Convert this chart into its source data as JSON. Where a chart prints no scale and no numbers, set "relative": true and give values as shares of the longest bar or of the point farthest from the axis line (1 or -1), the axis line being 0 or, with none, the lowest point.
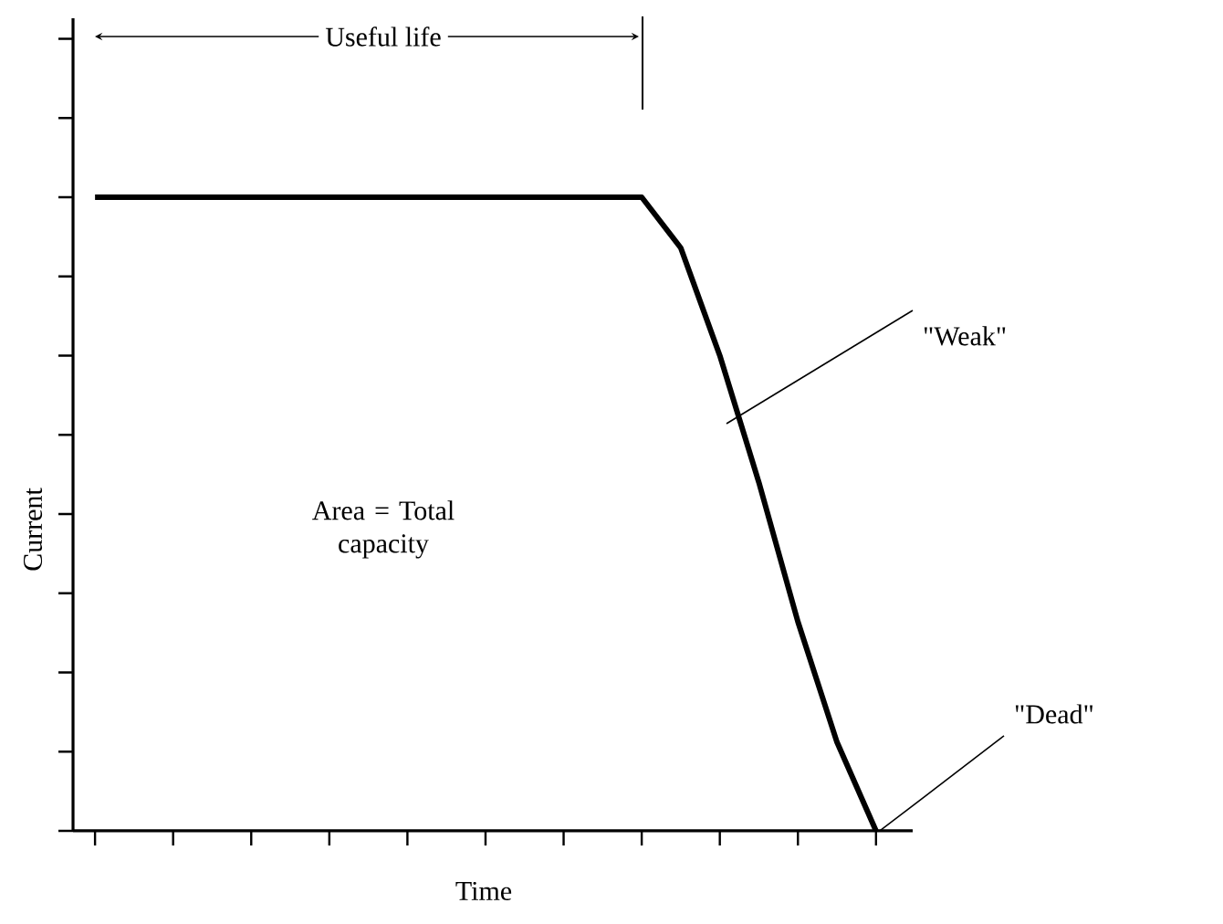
{
  "chart_data": {
    "type": "line",
    "relative": true,
    "xlabel": "Time",
    "ylabel": "Current",
    "categories": [
      null,
      null,
      null,
      null,
      null,
      null,
      null,
      null,
      null,
      null,
      null,
      null,
      null,
      null,
      null,
      null,
      null,
      null,
      null,
      null,
      null
    ],
    "series": [
      {
        "color": "#000000",
        "line_style": "solid",
        "values": [
          1,
          1,
          1,
          1,
          1,
          1,
          1,
          1,
          1,
          1,
          1,
          1,
          1,
          1,
          1,
          0.92,
          0.75,
          0.55,
          0.33,
          0.14,
          0
        ]
      }
    ],
    "annotations": [
      "Useful life",
      "\"Weak\"",
      "\"Dead\"",
      "Area = Total capacity"
    ]
  }
}
